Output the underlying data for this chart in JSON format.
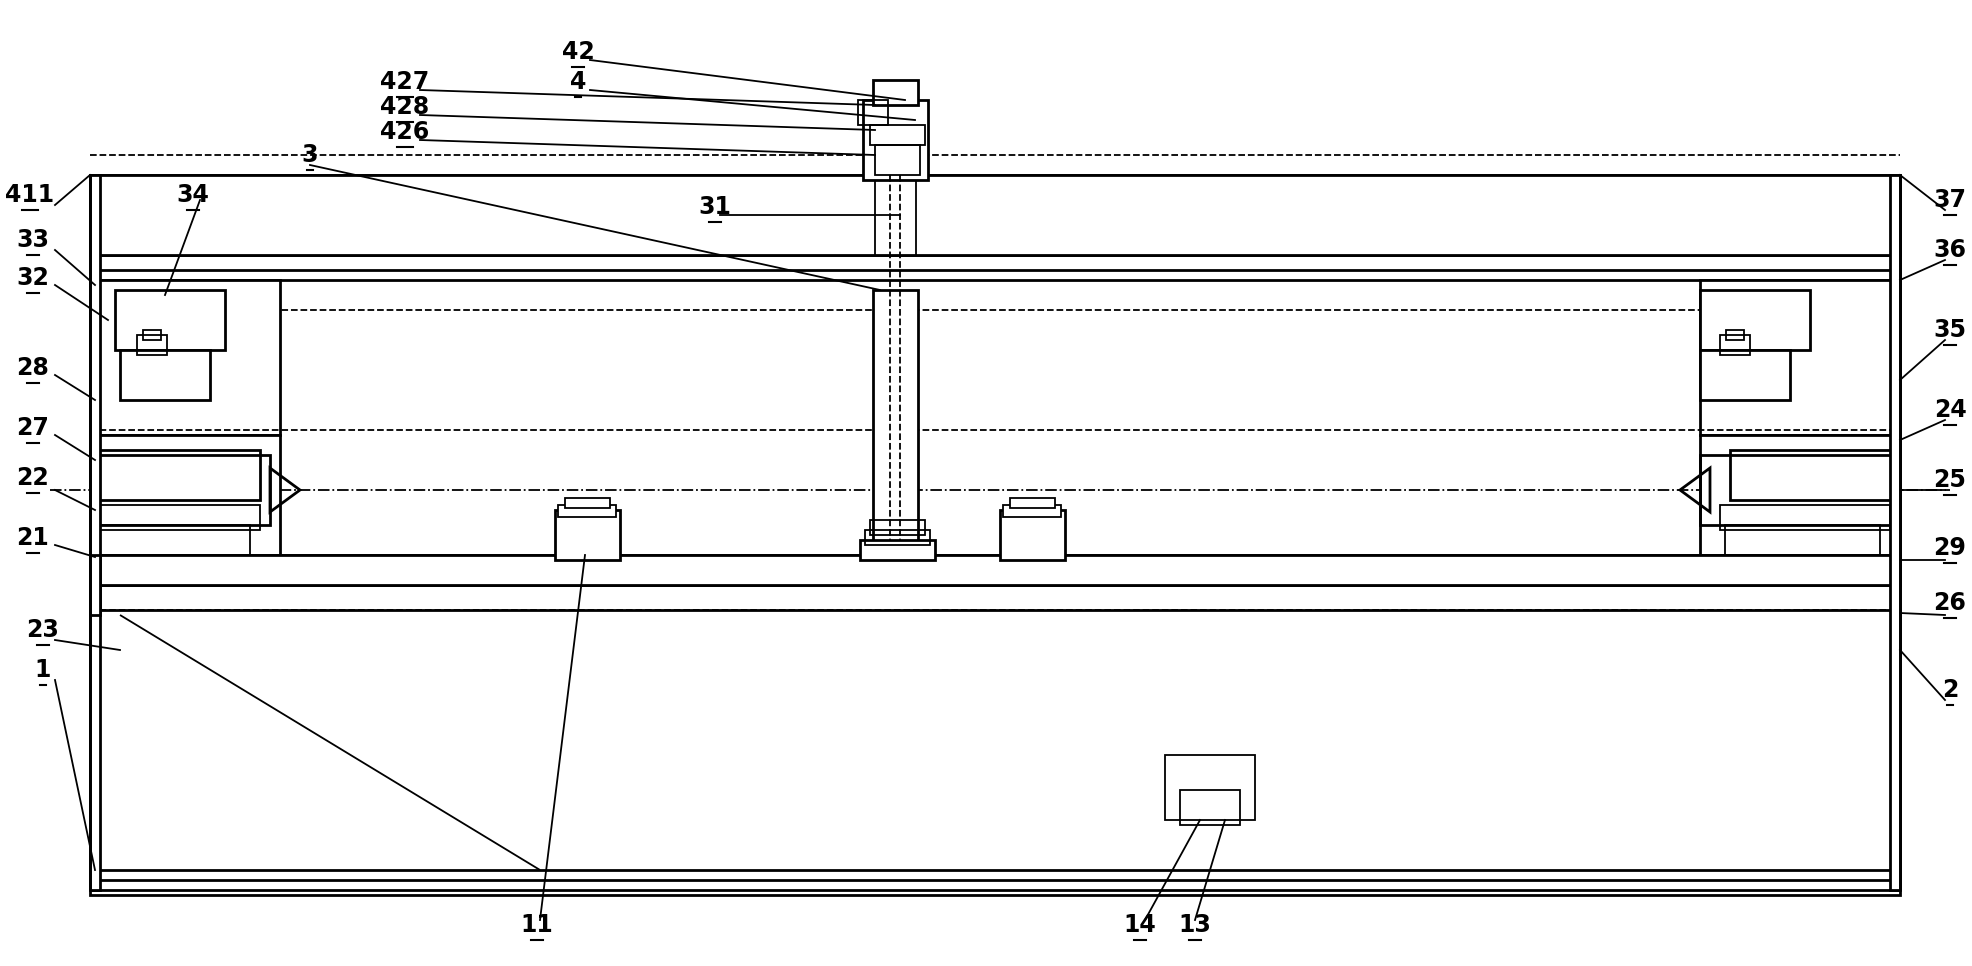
{
  "bg_color": "#ffffff",
  "line_color": "#000000",
  "fig_width": 19.72,
  "fig_height": 9.66
}
